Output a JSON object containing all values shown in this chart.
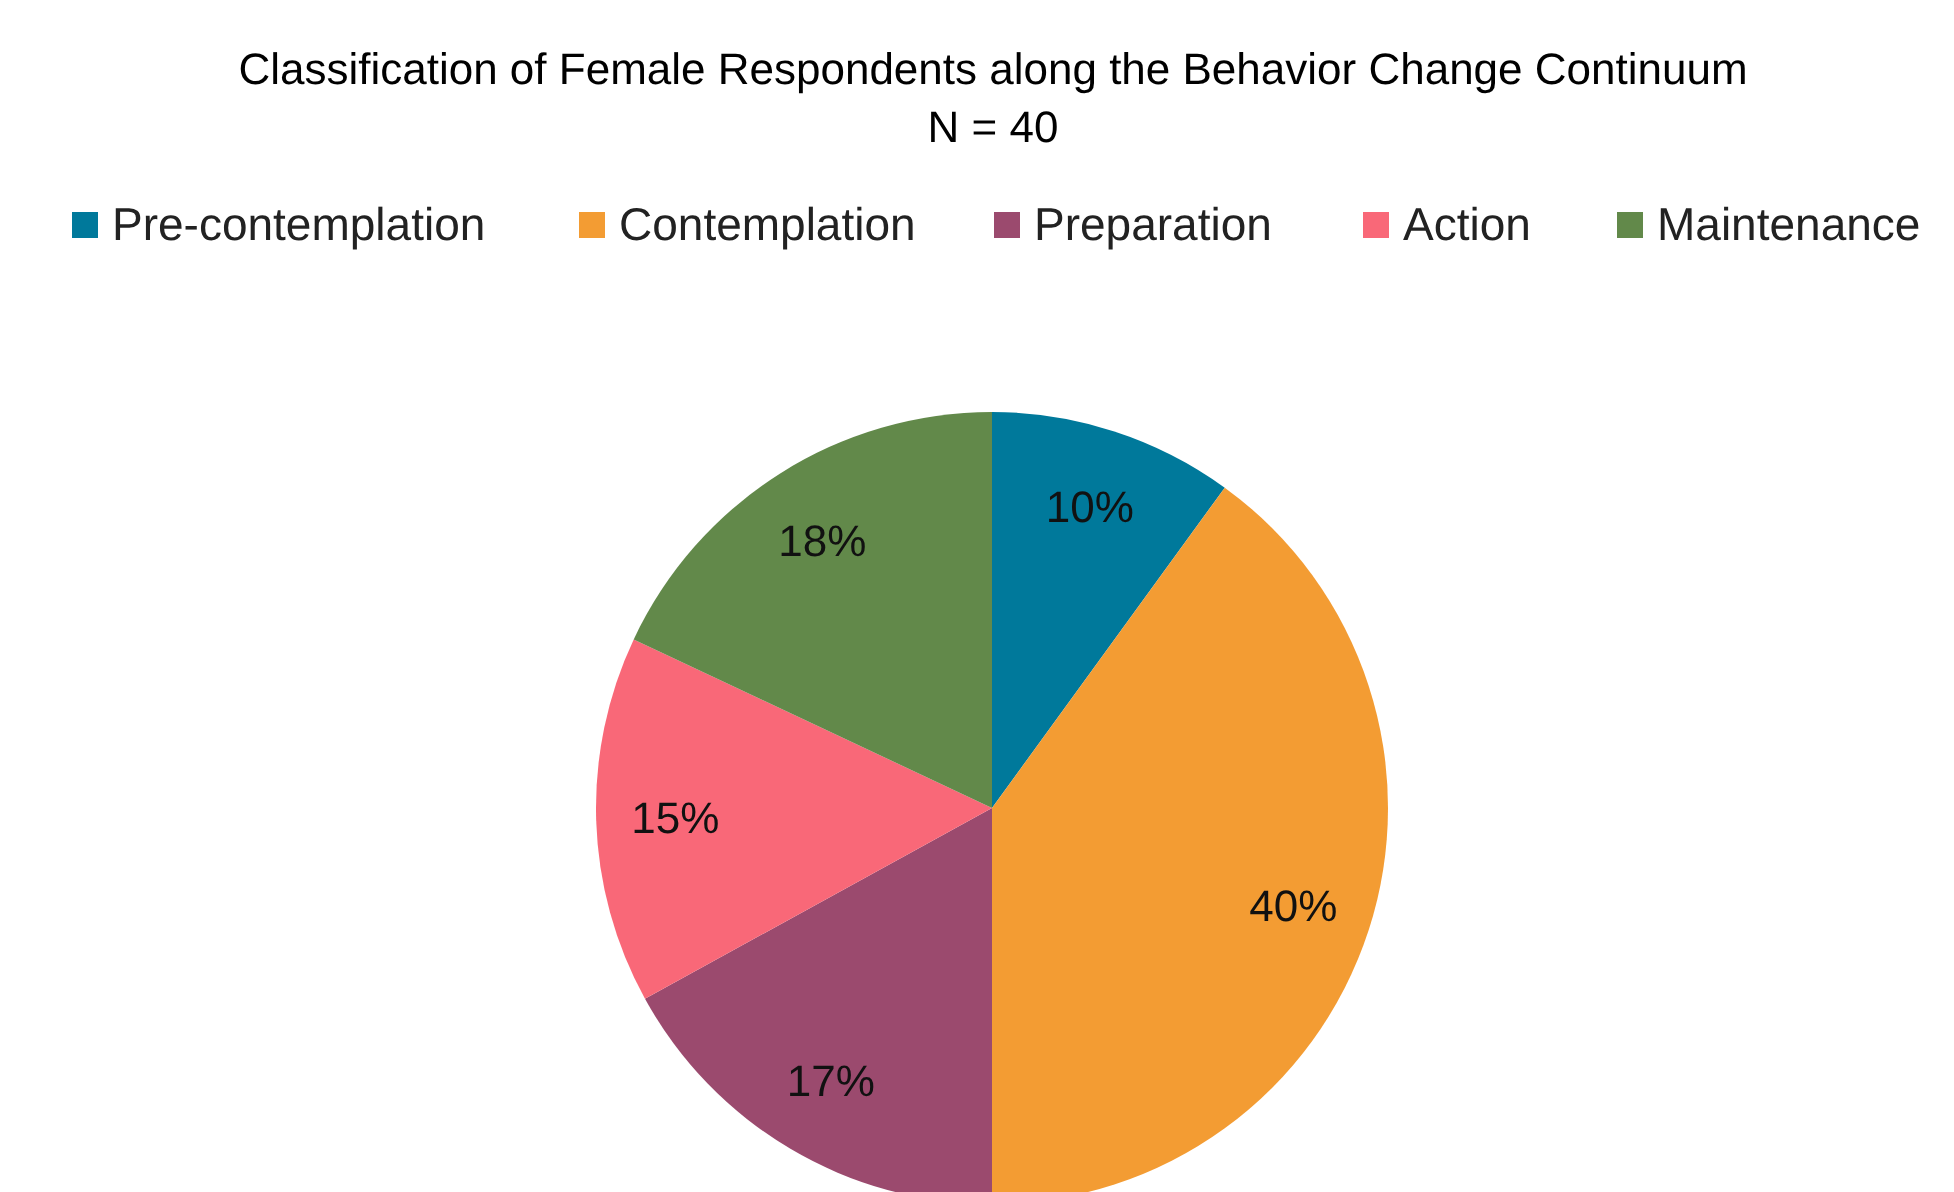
{
  "chart_data": {
    "type": "pie",
    "title": "Classification of Female Respondents along the Behavior Change Continuum",
    "subtitle": "N = 40",
    "categories": [
      "Pre-contemplation",
      "Contemplation",
      "Preparation",
      "Action",
      "Maintenance"
    ],
    "values": [
      10,
      40,
      17,
      15,
      18
    ],
    "colors": [
      "#00799b",
      "#f39c33",
      "#9b4a6e",
      "#f96878",
      "#62894a"
    ],
    "value_labels": [
      "10%",
      "40%",
      "17%",
      "15%",
      "18%"
    ],
    "legend": "top"
  }
}
